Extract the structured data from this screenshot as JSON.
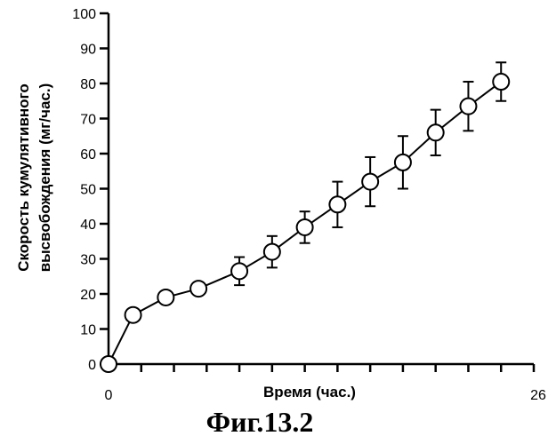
{
  "chart_data": {
    "type": "line",
    "title": "",
    "xlabel": "Время (час.)",
    "ylabel_line1": "Скорость кумулятивного",
    "ylabel_line2": "высвобождения (мг/час.)",
    "xlim": [
      0,
      26
    ],
    "ylim": [
      0,
      100
    ],
    "x_tick_labels": [
      "0",
      "26"
    ],
    "y_ticks": [
      0,
      10,
      20,
      30,
      40,
      50,
      60,
      70,
      80,
      90,
      100
    ],
    "grid": false,
    "series": [
      {
        "x": [
          0,
          1.5,
          3.5,
          5.5,
          8,
          10,
          12,
          14,
          16,
          18,
          20,
          22,
          24
        ],
        "y": [
          0,
          14,
          19,
          21.5,
          26.5,
          32,
          39,
          45.5,
          52,
          57.5,
          66,
          73.5,
          80.5
        ],
        "error": [
          0,
          0,
          0,
          0,
          4,
          4.5,
          4.5,
          6.5,
          7,
          7.5,
          6.5,
          7,
          5.5
        ],
        "marker": "open-circle",
        "color": "#000000"
      }
    ]
  },
  "figure_caption": "Фиг.13.2"
}
